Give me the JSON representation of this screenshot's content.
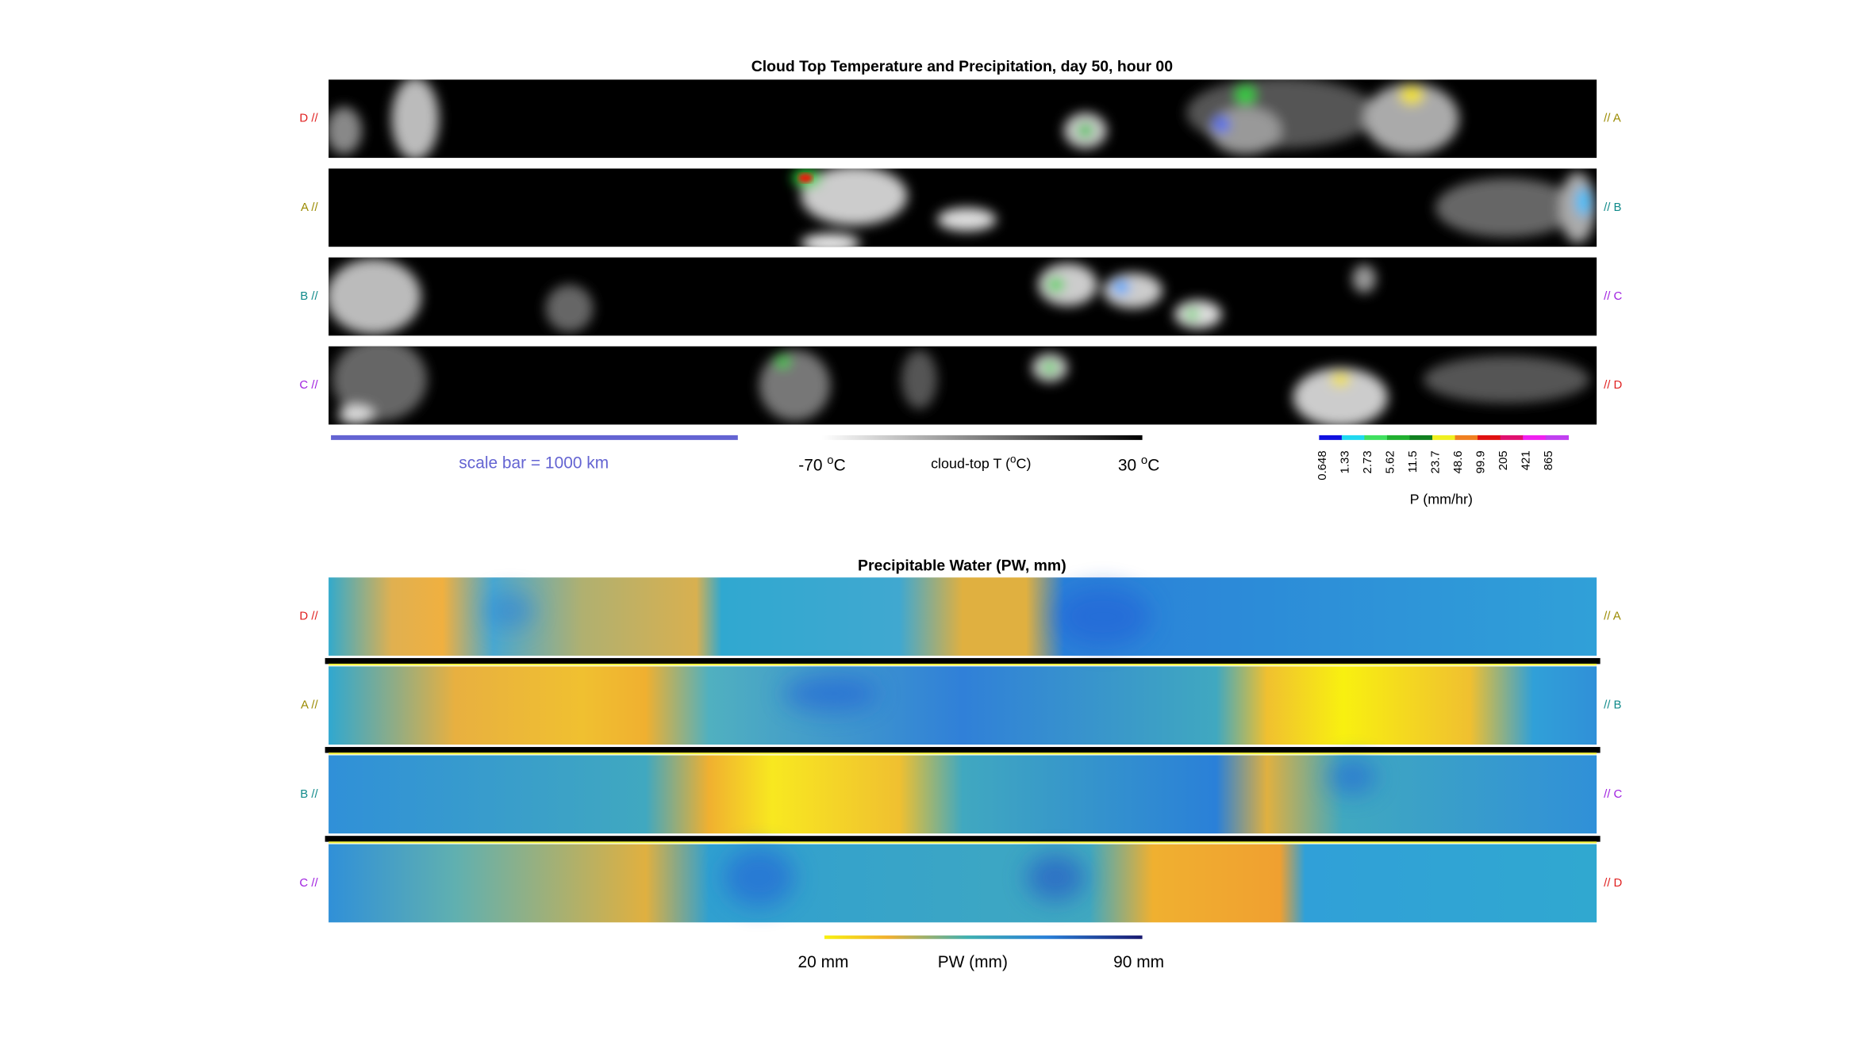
{
  "top_panel": {
    "title": "Cloud Top Temperature and Precipitation, day 50, hour 00",
    "left_labels": [
      "D //",
      "A //",
      "B //",
      "C //"
    ],
    "right_labels": [
      "// A",
      "// B",
      "// C",
      "// D"
    ],
    "scale_bar": "scale bar = 1000 km",
    "temperature_colorbar": {
      "min_label": {
        "number": "-70 ",
        "sup": "o",
        "unit": "C"
      },
      "title": {
        "text": "cloud-top T (",
        "sup": "o",
        "unit": "C)"
      },
      "max_label": {
        "number": "30 ",
        "sup": "o",
        "unit": "C"
      }
    },
    "precip_colorbar": {
      "ticks": [
        "0.648",
        "1.33",
        "2.73",
        "5.62",
        "11.5",
        "23.7",
        "48.6",
        "99.9",
        "205",
        "421",
        "865"
      ],
      "title": "P (mm/hr)"
    }
  },
  "bottom_panel": {
    "title": "Precipitable Water (PW, mm)",
    "left_labels": [
      "D //",
      "A //",
      "B //",
      "C //"
    ],
    "right_labels": [
      "// A",
      "// B",
      "// C",
      "// D"
    ],
    "pw_colorbar": {
      "min_label": "20 mm",
      "title": "PW (mm)",
      "max_label": "90 mm"
    }
  }
}
